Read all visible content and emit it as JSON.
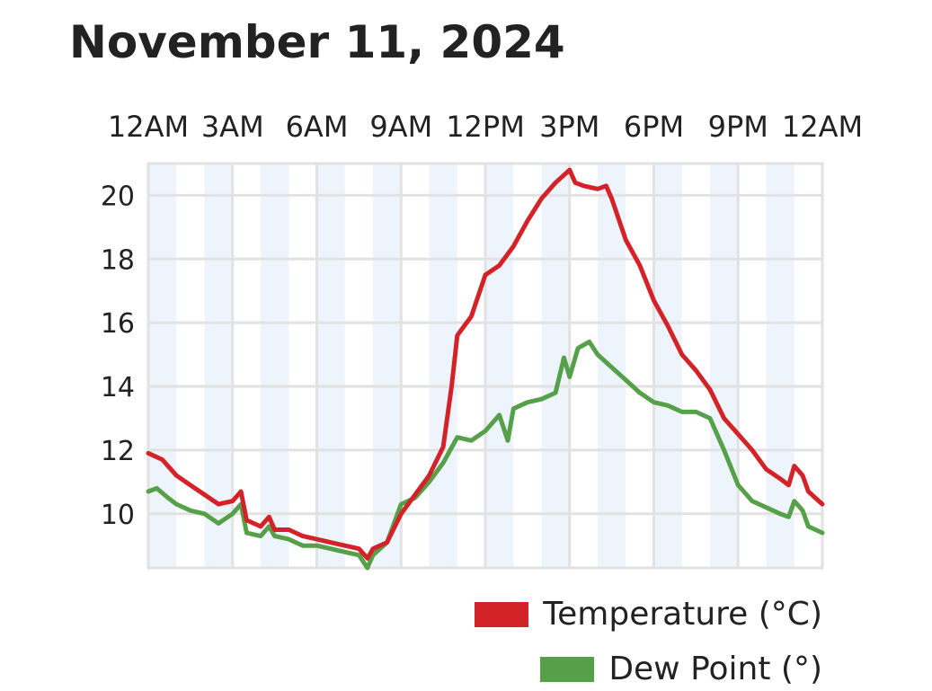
{
  "title": "November 11, 2024",
  "chart_data": {
    "type": "line",
    "title": "November 11, 2024",
    "x_tick_labels": [
      "12AM",
      "3AM",
      "6AM",
      "9AM",
      "12PM",
      "3PM",
      "6PM",
      "9PM",
      "12AM"
    ],
    "x_range_hours": [
      0,
      24
    ],
    "y_ticks": [
      10,
      12,
      14,
      16,
      18,
      20
    ],
    "ylim": [
      8.3,
      21
    ],
    "grid": true,
    "legend_position": "bottom-right",
    "series": [
      {
        "name": "Temperature (°C)",
        "color": "#d42229",
        "points": [
          [
            0,
            11.9
          ],
          [
            0.5,
            11.7
          ],
          [
            1,
            11.2
          ],
          [
            1.5,
            10.9
          ],
          [
            2,
            10.6
          ],
          [
            2.5,
            10.3
          ],
          [
            3,
            10.4
          ],
          [
            3.3,
            10.7
          ],
          [
            3.5,
            9.8
          ],
          [
            4,
            9.6
          ],
          [
            4.3,
            9.9
          ],
          [
            4.5,
            9.5
          ],
          [
            5,
            9.5
          ],
          [
            5.5,
            9.3
          ],
          [
            6,
            9.2
          ],
          [
            6.5,
            9.1
          ],
          [
            7,
            9.0
          ],
          [
            7.5,
            8.9
          ],
          [
            7.8,
            8.6
          ],
          [
            8,
            8.9
          ],
          [
            8.5,
            9.1
          ],
          [
            9,
            10.0
          ],
          [
            9.5,
            10.6
          ],
          [
            10,
            11.2
          ],
          [
            10.5,
            12.1
          ],
          [
            10.8,
            14.0
          ],
          [
            11,
            15.6
          ],
          [
            11.5,
            16.2
          ],
          [
            12,
            17.5
          ],
          [
            12.5,
            17.8
          ],
          [
            13,
            18.4
          ],
          [
            13.5,
            19.2
          ],
          [
            14,
            19.9
          ],
          [
            14.5,
            20.4
          ],
          [
            15,
            20.8
          ],
          [
            15.2,
            20.4
          ],
          [
            15.5,
            20.3
          ],
          [
            16,
            20.2
          ],
          [
            16.3,
            20.3
          ],
          [
            16.5,
            19.9
          ],
          [
            17,
            18.6
          ],
          [
            17.5,
            17.8
          ],
          [
            18,
            16.7
          ],
          [
            18.5,
            15.9
          ],
          [
            19,
            15.0
          ],
          [
            19.5,
            14.5
          ],
          [
            20,
            13.9
          ],
          [
            20.5,
            13.0
          ],
          [
            21,
            12.5
          ],
          [
            21.5,
            12.0
          ],
          [
            22,
            11.4
          ],
          [
            22.5,
            11.1
          ],
          [
            22.8,
            10.9
          ],
          [
            23,
            11.5
          ],
          [
            23.3,
            11.2
          ],
          [
            23.5,
            10.7
          ],
          [
            24,
            10.3
          ]
        ]
      },
      {
        "name": "Dew Point (°)",
        "color": "#56a04a",
        "points": [
          [
            0,
            10.7
          ],
          [
            0.3,
            10.8
          ],
          [
            0.7,
            10.5
          ],
          [
            1,
            10.3
          ],
          [
            1.5,
            10.1
          ],
          [
            2,
            10.0
          ],
          [
            2.5,
            9.7
          ],
          [
            3,
            10.0
          ],
          [
            3.3,
            10.3
          ],
          [
            3.5,
            9.4
          ],
          [
            4,
            9.3
          ],
          [
            4.3,
            9.6
          ],
          [
            4.5,
            9.3
          ],
          [
            5,
            9.2
          ],
          [
            5.5,
            9.0
          ],
          [
            6,
            9.0
          ],
          [
            6.5,
            8.9
          ],
          [
            7,
            8.8
          ],
          [
            7.5,
            8.7
          ],
          [
            7.8,
            8.3
          ],
          [
            8,
            8.7
          ],
          [
            8.5,
            9.1
          ],
          [
            9,
            10.3
          ],
          [
            9.5,
            10.5
          ],
          [
            10,
            11.0
          ],
          [
            10.5,
            11.6
          ],
          [
            11,
            12.4
          ],
          [
            11.5,
            12.3
          ],
          [
            12,
            12.6
          ],
          [
            12.5,
            13.1
          ],
          [
            12.8,
            12.3
          ],
          [
            13,
            13.3
          ],
          [
            13.5,
            13.5
          ],
          [
            14,
            13.6
          ],
          [
            14.5,
            13.8
          ],
          [
            14.8,
            14.9
          ],
          [
            15,
            14.3
          ],
          [
            15.3,
            15.2
          ],
          [
            15.7,
            15.4
          ],
          [
            16,
            15.0
          ],
          [
            16.5,
            14.6
          ],
          [
            17,
            14.2
          ],
          [
            17.5,
            13.8
          ],
          [
            18,
            13.5
          ],
          [
            18.5,
            13.4
          ],
          [
            19,
            13.2
          ],
          [
            19.5,
            13.2
          ],
          [
            20,
            13.0
          ],
          [
            20.5,
            12.0
          ],
          [
            21,
            10.9
          ],
          [
            21.5,
            10.4
          ],
          [
            22,
            10.2
          ],
          [
            22.5,
            10.0
          ],
          [
            22.8,
            9.9
          ],
          [
            23,
            10.4
          ],
          [
            23.3,
            10.1
          ],
          [
            23.5,
            9.6
          ],
          [
            24,
            9.4
          ]
        ]
      }
    ]
  }
}
